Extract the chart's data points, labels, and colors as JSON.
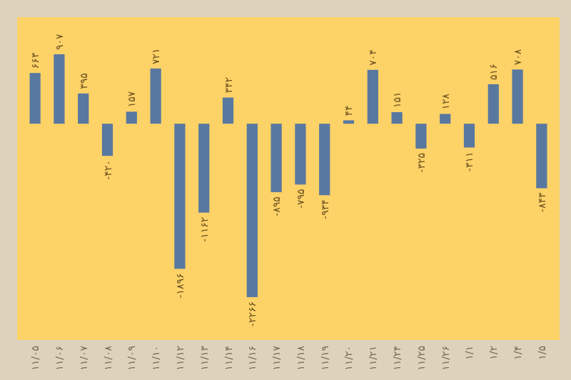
{
  "chart_data": {
    "type": "bar",
    "categories": [
      "۱۱/۰۵",
      "۱۱/۰۶",
      "۱۱/۰۷",
      "۱۱/۰۸",
      "۱۱/۰۹",
      "۱۱/۱۰",
      "۱۱/۱۲",
      "۱۱/۱۳",
      "۱۱/۱۴",
      "۱۱/۱۶",
      "۱۱/۱۷",
      "۱۱/۱۸",
      "۱۱/۱۹",
      "۱۱/۲۰",
      "۱۱/۲۱",
      "۱۱/۲۴",
      "۱۱/۲۵",
      "۱۱/۲۶",
      "۱/۱",
      "۱/۲",
      "۱/۴",
      "۱/۵"
    ],
    "values": [
      663,
      907,
      395,
      -420,
      157,
      721,
      -1896,
      -1162,
      342,
      -2266,
      -895,
      -795,
      -934,
      44,
      704,
      151,
      -325,
      128,
      -311,
      516,
      708,
      -843
    ],
    "value_labels": [
      "۶۶۳",
      "۹۰۷",
      "۳۹۵",
      "-۴۲۰",
      "۱۵۷",
      "۷۲۱",
      "-۱۸۹۶",
      "-۱۱۶۲",
      "۳۴۲",
      "-۲۲۶۶",
      "-۸۹۵",
      "-۷۹۵",
      "-۹۳۴",
      "۴۴",
      "۷۰۴",
      "۱۵۱",
      "-۳۲۵",
      "۱۲۸",
      "-۳۱۱",
      "۵۱۶",
      "۷۰۸",
      "-۸۴۳"
    ],
    "color": "#5878a0"
  }
}
